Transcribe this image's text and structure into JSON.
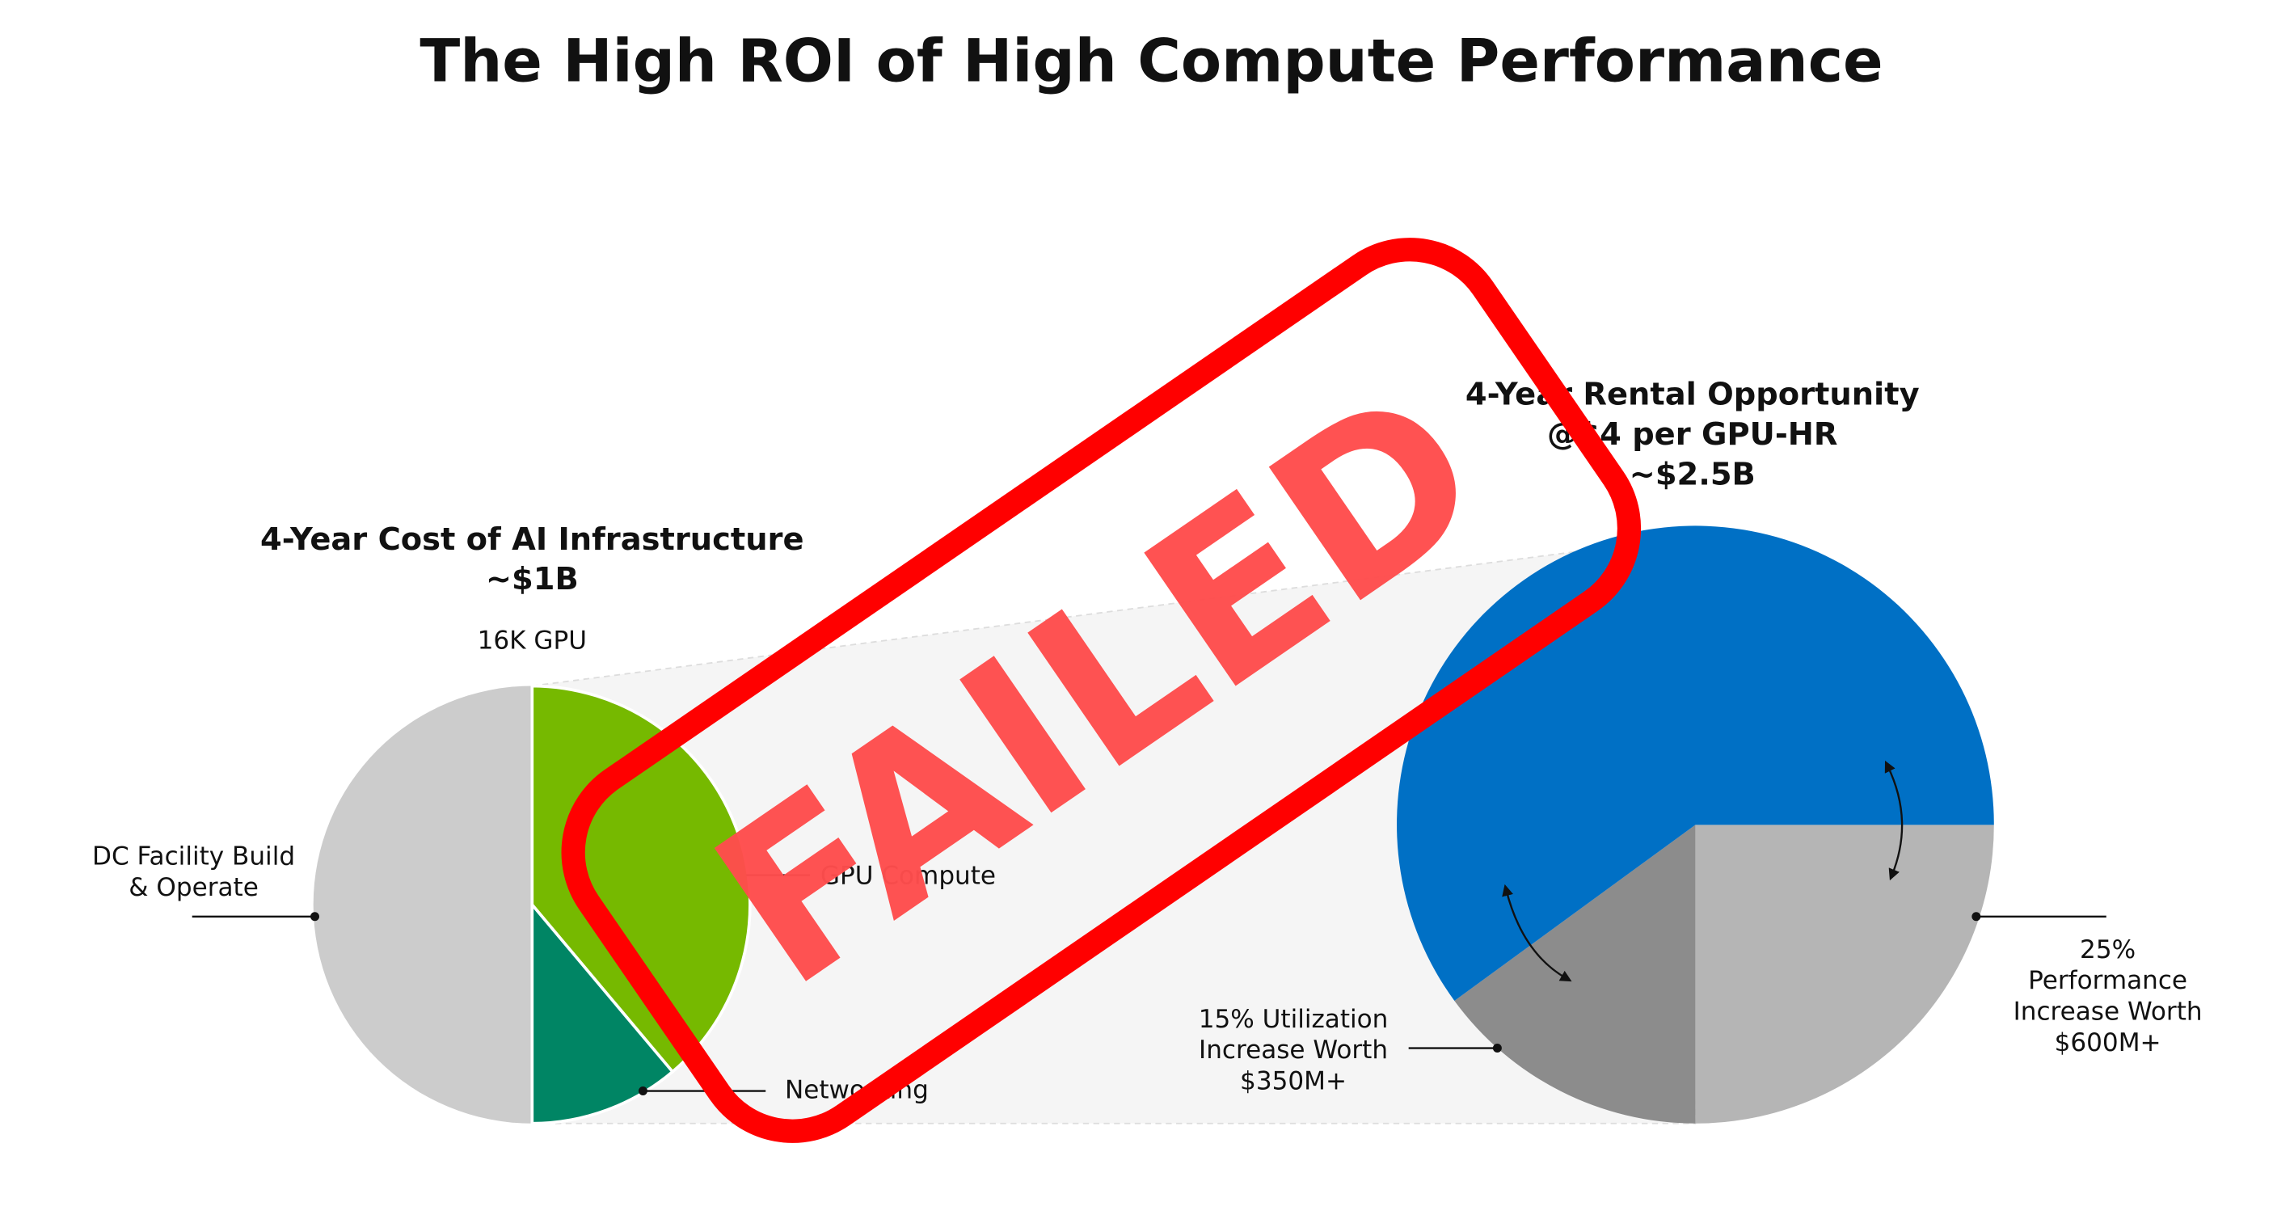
{
  "title": "The High ROI of High Compute Performance",
  "left_pie": {
    "heading": [
      "4-Year Cost of AI Infrastructure",
      "~$1B"
    ],
    "caption": "16K GPU",
    "labels": {
      "facility": [
        "DC Facility Build",
        "& Operate"
      ],
      "compute": "GPU Compute",
      "networking": "Networking"
    }
  },
  "right_pie": {
    "heading": [
      "4-Year Rental Opportunity",
      "@$4 per GPU-HR",
      "~$2.5B"
    ],
    "labels": {
      "utilization": [
        "15% Utilization",
        "Increase Worth",
        "$350M+"
      ],
      "performance": [
        "25%",
        "Performance",
        "Increase Worth",
        "$600M+"
      ]
    }
  },
  "stamp": "FAILED"
}
